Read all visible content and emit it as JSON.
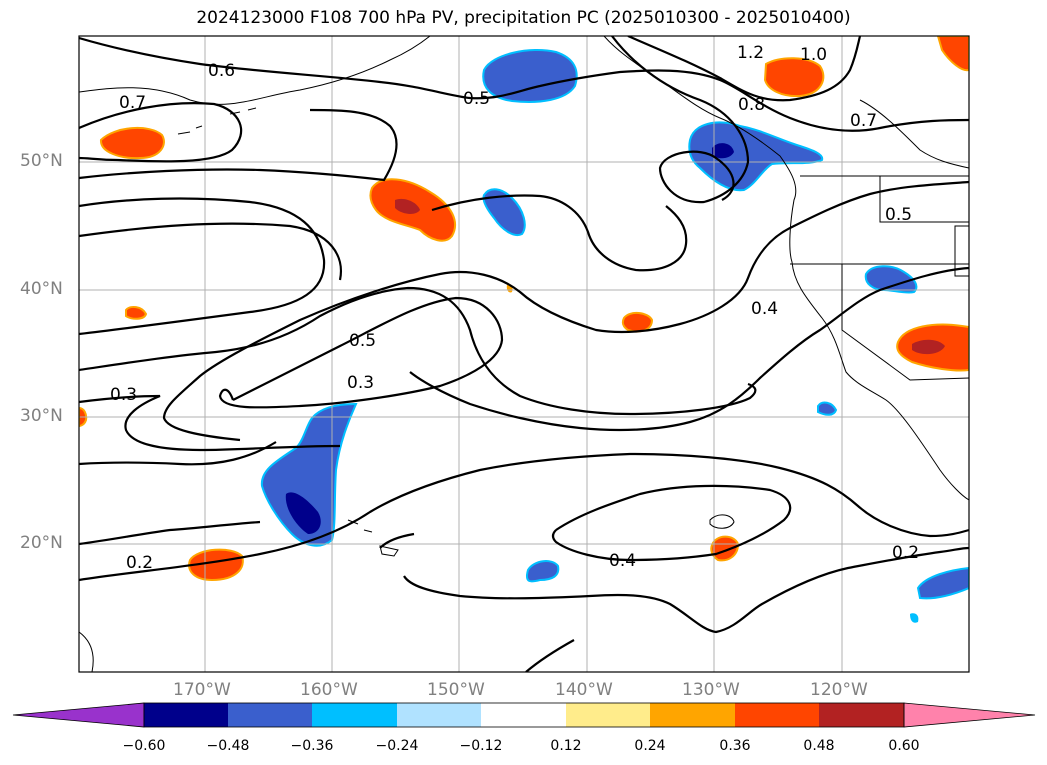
{
  "title": "2024123000 F108 700 hPa PV, precipitation PC (2025010300 - 2025010400)",
  "lat_labels": [
    "50°N",
    "40°N",
    "30°N",
    "20°N"
  ],
  "lon_labels": [
    "170°W",
    "160°W",
    "150°W",
    "140°W",
    "130°W",
    "120°W"
  ],
  "contour_labels": [
    "0.6",
    "0.7",
    "0.5",
    "1.2",
    "1.0",
    "0.8",
    "0.7",
    "0.5",
    "0.5",
    "0.4",
    "0.3",
    "0.3",
    "0.2",
    "0.4",
    "0.2"
  ],
  "colorbar": {
    "ticks": [
      "−0.60",
      "−0.48",
      "−0.36",
      "−0.24",
      "−0.12",
      "0.12",
      "0.24",
      "0.36",
      "0.48",
      "0.60"
    ],
    "colors": [
      "#9932CC",
      "#00008B",
      "#3A5FCD",
      "#00BFFF",
      "#B0E2FF",
      "#FFFFFF",
      "#FFEC8B",
      "#FFA500",
      "#FF4500",
      "#B22222",
      "#FF82AB"
    ]
  }
}
